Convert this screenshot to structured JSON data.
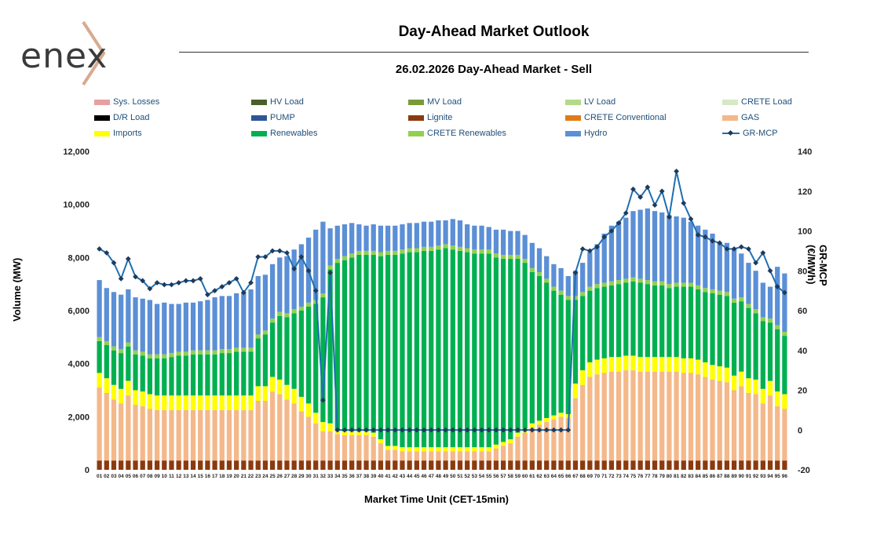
{
  "header": {
    "logo_text": "enex",
    "title": "Day-Ahead Market Outlook",
    "subtitle": "26.02.2026  Day-Ahead Market - Sell"
  },
  "legend": [
    {
      "label": "Sys. Losses",
      "color": "#e6a0a0"
    },
    {
      "label": "HV Load",
      "color": "#4a5f2a"
    },
    {
      "label": "MV Load",
      "color": "#7a9a3a"
    },
    {
      "label": "LV Load",
      "color": "#b5d98a"
    },
    {
      "label": "CRETE Load",
      "color": "#d6e8c4"
    },
    {
      "label": "D/R Load",
      "color": "#000000"
    },
    {
      "label": "PUMP",
      "color": "#2f5597"
    },
    {
      "label": "Lignite",
      "color": "#8b3a0f"
    },
    {
      "label": "CRETE Conventional",
      "color": "#e07b1a"
    },
    {
      "label": "GAS",
      "color": "#f4b88a"
    },
    {
      "label": "Imports",
      "color": "#ffff00"
    },
    {
      "label": "Renewables",
      "color": "#00b050"
    },
    {
      "label": "CRETE Renewables",
      "color": "#92d050"
    },
    {
      "label": "Hydro",
      "color": "#5b8fd6"
    },
    {
      "label": "GR-MCP",
      "color": "#1f6fb0"
    }
  ],
  "axes": {
    "ylabel_left": "Volume (MW)",
    "ylabel_right": "GR-MCP (€/MWh)",
    "xlabel": "Market Time Unit (CET-15min)",
    "left_ticks": [
      "0",
      "2,000",
      "4,000",
      "6,000",
      "8,000",
      "10,000",
      "12,000"
    ],
    "right_ticks": [
      "-20",
      "0",
      "20",
      "40",
      "60",
      "80",
      "100",
      "120",
      "140"
    ]
  },
  "chart_data": {
    "type": "bar",
    "stacked": true,
    "ylim": [
      0,
      12000
    ],
    "y2lim": [
      -20,
      140
    ],
    "categories": [
      "01",
      "02",
      "03",
      "04",
      "05",
      "06",
      "07",
      "08",
      "09",
      "10",
      "11",
      "12",
      "13",
      "14",
      "15",
      "16",
      "17",
      "18",
      "19",
      "20",
      "21",
      "22",
      "23",
      "24",
      "25",
      "26",
      "27",
      "28",
      "29",
      "30",
      "31",
      "32",
      "33",
      "34",
      "35",
      "36",
      "37",
      "38",
      "39",
      "40",
      "41",
      "42",
      "43",
      "44",
      "45",
      "46",
      "47",
      "48",
      "49",
      "50",
      "51",
      "52",
      "53",
      "54",
      "55",
      "56",
      "57",
      "58",
      "59",
      "60",
      "61",
      "62",
      "63",
      "64",
      "65",
      "66",
      "67",
      "68",
      "69",
      "70",
      "71",
      "72",
      "73",
      "74",
      "75",
      "76",
      "77",
      "78",
      "79",
      "80",
      "81",
      "82",
      "83",
      "84",
      "85",
      "86",
      "87",
      "88",
      "89",
      "90",
      "91",
      "92",
      "93",
      "94",
      "95",
      "96"
    ],
    "series": [
      {
        "name": "Lignite",
        "color": "#8b3a0f",
        "values": [
          350,
          350,
          350,
          350,
          350,
          350,
          350,
          350,
          350,
          350,
          350,
          350,
          350,
          350,
          350,
          350,
          350,
          350,
          350,
          350,
          350,
          350,
          350,
          350,
          350,
          350,
          350,
          350,
          350,
          350,
          350,
          350,
          350,
          350,
          350,
          350,
          350,
          350,
          350,
          350,
          350,
          350,
          350,
          350,
          350,
          350,
          350,
          350,
          350,
          350,
          350,
          350,
          350,
          350,
          350,
          350,
          350,
          350,
          350,
          350,
          350,
          350,
          350,
          350,
          350,
          350,
          350,
          350,
          350,
          350,
          350,
          350,
          350,
          350,
          350,
          350,
          350,
          350,
          350,
          350,
          350,
          350,
          350,
          350,
          350,
          350,
          350,
          350,
          350,
          350,
          350,
          350,
          350,
          350,
          350,
          350
        ]
      },
      {
        "name": "GAS",
        "color": "#f4b88a",
        "values": [
          2750,
          2550,
          2300,
          2150,
          2450,
          2100,
          2050,
          1950,
          1900,
          1900,
          1900,
          1900,
          1900,
          1900,
          1900,
          1900,
          1900,
          1900,
          1900,
          1900,
          1900,
          1900,
          2250,
          2250,
          2600,
          2500,
          2300,
          2150,
          1850,
          1650,
          1400,
          1100,
          1100,
          1000,
          950,
          950,
          950,
          950,
          900,
          650,
          400,
          400,
          350,
          350,
          350,
          350,
          350,
          350,
          350,
          350,
          350,
          350,
          350,
          350,
          350,
          450,
          550,
          650,
          900,
          1050,
          1250,
          1350,
          1450,
          1550,
          1650,
          1600,
          2350,
          2850,
          3150,
          3250,
          3300,
          3350,
          3350,
          3400,
          3400,
          3350,
          3350,
          3350,
          3350,
          3350,
          3350,
          3300,
          3300,
          3250,
          3150,
          3050,
          3000,
          2950,
          2650,
          2800,
          2550,
          2500,
          2150,
          2450,
          2050,
          1950
        ]
      },
      {
        "name": "Imports",
        "color": "#ffff00",
        "values": [
          550,
          550,
          550,
          550,
          550,
          550,
          550,
          550,
          550,
          550,
          550,
          550,
          550,
          550,
          550,
          550,
          550,
          550,
          550,
          550,
          550,
          550,
          550,
          550,
          550,
          550,
          550,
          550,
          550,
          500,
          400,
          350,
          300,
          150,
          150,
          150,
          150,
          150,
          150,
          150,
          150,
          150,
          150,
          150,
          150,
          150,
          150,
          150,
          150,
          150,
          150,
          150,
          150,
          150,
          150,
          150,
          150,
          150,
          150,
          150,
          150,
          150,
          150,
          150,
          150,
          150,
          550,
          550,
          550,
          550,
          550,
          550,
          550,
          550,
          550,
          550,
          550,
          550,
          550,
          550,
          550,
          550,
          550,
          550,
          550,
          550,
          550,
          550,
          550,
          550,
          550,
          550,
          550,
          550,
          550,
          550
        ]
      },
      {
        "name": "Renewables",
        "color": "#00b050",
        "values": [
          1200,
          1250,
          1300,
          1350,
          1300,
          1350,
          1350,
          1350,
          1400,
          1400,
          1450,
          1500,
          1500,
          1550,
          1550,
          1550,
          1550,
          1600,
          1600,
          1650,
          1650,
          1650,
          1800,
          1950,
          2050,
          2400,
          2550,
          2850,
          3250,
          3650,
          4100,
          4700,
          5800,
          6300,
          6450,
          6550,
          6650,
          6650,
          6700,
          6900,
          7200,
          7200,
          7300,
          7350,
          7350,
          7400,
          7400,
          7450,
          7500,
          7450,
          7400,
          7350,
          7300,
          7300,
          7300,
          7050,
          6900,
          6800,
          6550,
          6250,
          5700,
          5450,
          5100,
          4700,
          4450,
          4300,
          3150,
          2800,
          2700,
          2700,
          2700,
          2700,
          2750,
          2750,
          2800,
          2800,
          2750,
          2700,
          2700,
          2600,
          2650,
          2700,
          2700,
          2650,
          2650,
          2700,
          2700,
          2700,
          2750,
          2650,
          2650,
          2500,
          2550,
          2200,
          2350,
          2200
        ]
      },
      {
        "name": "CRETE Renewables",
        "color": "#92d050",
        "values": [
          150,
          150,
          150,
          150,
          150,
          150,
          150,
          150,
          150,
          150,
          150,
          150,
          150,
          150,
          150,
          150,
          150,
          150,
          150,
          150,
          150,
          150,
          150,
          150,
          150,
          150,
          150,
          150,
          150,
          150,
          150,
          150,
          150,
          150,
          150,
          150,
          150,
          150,
          150,
          150,
          150,
          150,
          150,
          150,
          150,
          150,
          150,
          150,
          150,
          150,
          150,
          150,
          150,
          150,
          150,
          150,
          150,
          150,
          150,
          150,
          150,
          150,
          150,
          150,
          150,
          150,
          150,
          150,
          150,
          150,
          150,
          150,
          150,
          150,
          150,
          150,
          150,
          150,
          150,
          150,
          150,
          150,
          150,
          150,
          150,
          150,
          150,
          150,
          150,
          150,
          150,
          150,
          150,
          150,
          150,
          150
        ]
      },
      {
        "name": "Hydro",
        "color": "#5b8fd6",
        "values": [
          2150,
          2000,
          2050,
          2050,
          2000,
          2000,
          2000,
          2050,
          1900,
          1950,
          1850,
          1800,
          1850,
          1800,
          1850,
          1900,
          2000,
          2000,
          2000,
          2050,
          2100,
          2200,
          2200,
          2100,
          2050,
          2050,
          2150,
          2250,
          2350,
          2450,
          2650,
          2700,
          1400,
          1250,
          1200,
          1150,
          1000,
          950,
          1000,
          1000,
          950,
          950,
          950,
          950,
          950,
          950,
          950,
          950,
          900,
          1000,
          1000,
          900,
          900,
          900,
          850,
          900,
          950,
          900,
          900,
          900,
          950,
          900,
          850,
          850,
          850,
          750,
          950,
          1100,
          1300,
          1500,
          1850,
          2100,
          2200,
          2300,
          2500,
          2600,
          2700,
          2650,
          2600,
          2600,
          2500,
          2450,
          2300,
          2250,
          2200,
          2100,
          1800,
          1850,
          1900,
          1650,
          1550,
          1450,
          1300,
          1200,
          2200,
          2200
        ]
      }
    ],
    "mcp": {
      "name": "GR-MCP",
      "color": "#1f6fb0",
      "values": [
        91,
        89,
        84,
        76,
        86,
        77,
        75,
        71,
        74,
        73,
        73,
        74,
        75,
        75,
        76,
        68,
        70,
        72,
        74,
        76,
        69,
        74,
        87,
        87,
        90,
        90,
        89,
        81,
        87,
        80,
        70,
        15,
        79,
        0,
        0,
        0,
        0,
        0,
        0,
        0,
        0,
        0,
        0,
        0,
        0,
        0,
        0,
        0,
        0,
        0,
        0,
        0,
        0,
        0,
        0,
        0,
        0,
        0,
        0,
        0,
        0,
        0,
        0,
        0,
        0,
        0,
        79,
        91,
        90,
        92,
        97,
        100,
        104,
        109,
        121,
        117,
        122,
        113,
        120,
        107,
        130,
        114,
        106,
        98,
        97,
        95,
        94,
        91,
        91,
        92,
        91,
        84,
        89,
        80,
        72,
        69
      ]
    }
  }
}
